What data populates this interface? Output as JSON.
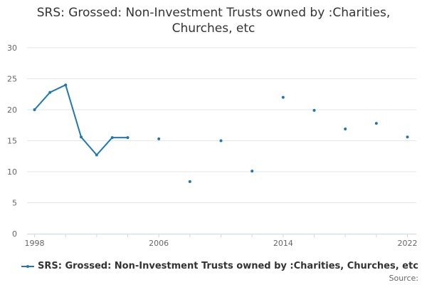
{
  "chart_data": {
    "type": "line",
    "title_lines": [
      "SRS: Grossed: Non-Investment Trusts owned by :Charities,",
      "Churches, etc"
    ],
    "xlabel": "",
    "ylabel": "",
    "ylim": [
      0,
      30
    ],
    "yticks": [
      0,
      5,
      10,
      15,
      20,
      25,
      30
    ],
    "xlim": [
      1998,
      2022
    ],
    "xticks": [
      1998,
      2006,
      2014,
      2022
    ],
    "grid": true,
    "legend_position": "bottom",
    "series": [
      {
        "name": "SRS: Grossed: Non-Investment Trusts owned by :Charities, Churches, etc",
        "color": "#1f78b4",
        "points": [
          {
            "x": 1998,
            "y": 20.0
          },
          {
            "x": 1999,
            "y": 22.8
          },
          {
            "x": 2000,
            "y": 24.0
          },
          {
            "x": 2001,
            "y": 15.6
          },
          {
            "x": 2002,
            "y": 12.7
          },
          {
            "x": 2003,
            "y": 15.5
          },
          {
            "x": 2004,
            "y": 15.5
          },
          {
            "x": 2006,
            "y": 15.3
          },
          {
            "x": 2008,
            "y": 8.4
          },
          {
            "x": 2010,
            "y": 15.0
          },
          {
            "x": 2012,
            "y": 10.1
          },
          {
            "x": 2014,
            "y": 22.0
          },
          {
            "x": 2016,
            "y": 19.9
          },
          {
            "x": 2018,
            "y": 16.9
          },
          {
            "x": 2020,
            "y": 17.8
          },
          {
            "x": 2022,
            "y": 15.6
          }
        ]
      }
    ]
  },
  "legend": {
    "label": "SRS: Grossed: Non-Investment Trusts owned by :Charities, Churches, etc"
  },
  "source_label": "Source:"
}
